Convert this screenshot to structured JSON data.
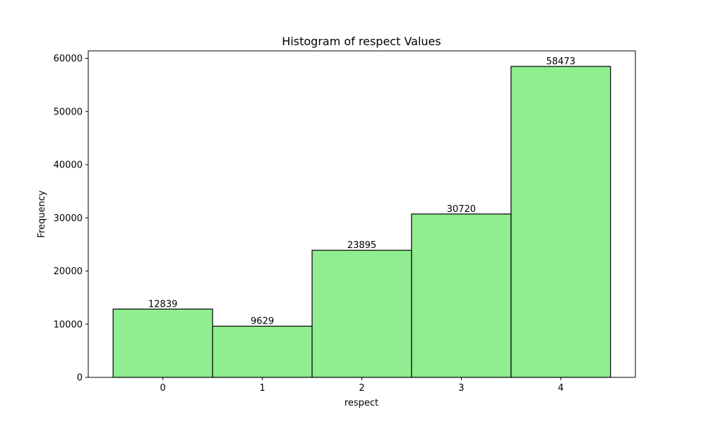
{
  "chart_data": {
    "type": "bar",
    "title": "Histogram of respect Values",
    "xlabel": "respect",
    "ylabel": "Frequency",
    "categories": [
      "0",
      "1",
      "2",
      "3",
      "4"
    ],
    "values": [
      12839,
      9629,
      23895,
      30720,
      58473
    ],
    "xlim": [
      -0.75,
      4.75
    ],
    "ylim": [
      0,
      61396
    ],
    "yticks": [
      0,
      10000,
      20000,
      30000,
      40000,
      50000,
      60000
    ],
    "bar_color": "#90ee90",
    "edge_color": "#000000",
    "grid": false,
    "legend": "none"
  }
}
